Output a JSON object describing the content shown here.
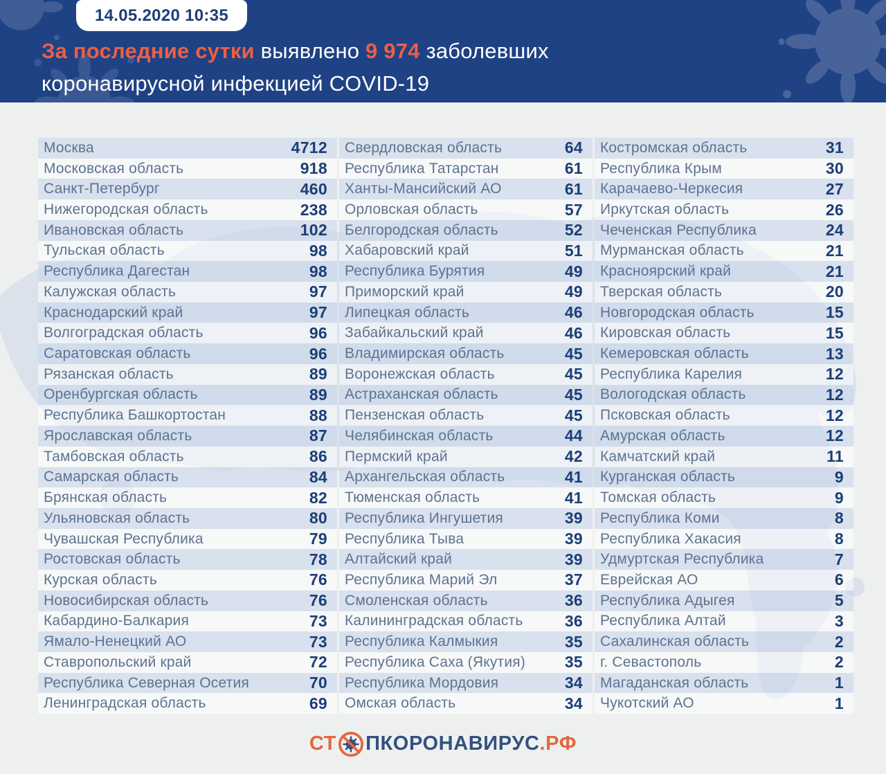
{
  "header": {
    "timestamp": "14.05.2020 10:35",
    "headline": {
      "highlight": "За последние сутки",
      "mid": " выявлено ",
      "count": "9 974",
      "tail": " заболевших",
      "line2": "коронавирусной инфекцией COVID-19"
    }
  },
  "chart_data": {
    "type": "table",
    "title": "За последние сутки выявлено 9 974 заболевших коронавирусной инфекцией COVID-19",
    "timestamp": "14.05.2020 10:35",
    "total_new_cases": "9 974",
    "layout": "3 columns, 28 zebra-striped rows each, values right-aligned",
    "rows": [
      [
        "Москва",
        4712
      ],
      [
        "Московская область",
        918
      ],
      [
        "Санкт-Петербург",
        460
      ],
      [
        "Нижегородская область",
        238
      ],
      [
        "Ивановская область",
        102
      ],
      [
        "Тульская область",
        98
      ],
      [
        "Республика Дагестан",
        98
      ],
      [
        "Калужская область",
        97
      ],
      [
        "Краснодарский край",
        97
      ],
      [
        "Волгоградская область",
        96
      ],
      [
        "Саратовская область",
        96
      ],
      [
        "Рязанская область",
        89
      ],
      [
        "Оренбургская область",
        89
      ],
      [
        "Республика Башкортостан",
        88
      ],
      [
        "Ярославская область",
        87
      ],
      [
        "Тамбовская область",
        86
      ],
      [
        "Самарская область",
        84
      ],
      [
        "Брянская область",
        82
      ],
      [
        "Ульяновская область",
        80
      ],
      [
        "Чувашская Республика",
        79
      ],
      [
        "Ростовская область",
        78
      ],
      [
        "Курская область",
        76
      ],
      [
        "Новосибирская область",
        76
      ],
      [
        "Кабардино-Балкария",
        73
      ],
      [
        "Ямало-Ненецкий АО",
        73
      ],
      [
        "Ставропольский край",
        72
      ],
      [
        "Республика Северная Осетия",
        70
      ],
      [
        "Ленинградская область",
        69
      ],
      [
        "Свердловская область",
        64
      ],
      [
        "Республика Татарстан",
        61
      ],
      [
        "Ханты-Мансийский АО",
        61
      ],
      [
        "Орловская область",
        57
      ],
      [
        "Белгородская область",
        52
      ],
      [
        "Хабаровский край",
        51
      ],
      [
        "Республика Бурятия",
        49
      ],
      [
        "Приморский край",
        49
      ],
      [
        "Липецкая область",
        46
      ],
      [
        "Забайкальский край",
        46
      ],
      [
        "Владимирская область",
        45
      ],
      [
        "Воронежская область",
        45
      ],
      [
        "Астраханская область",
        45
      ],
      [
        "Пензенская область",
        45
      ],
      [
        "Челябинская область",
        44
      ],
      [
        "Пермский край",
        42
      ],
      [
        "Архангельская область",
        41
      ],
      [
        "Тюменская область",
        41
      ],
      [
        "Республика Ингушетия",
        39
      ],
      [
        "Республика Тыва",
        39
      ],
      [
        "Алтайский край",
        39
      ],
      [
        "Республика Марий Эл",
        37
      ],
      [
        "Смоленская область",
        36
      ],
      [
        "Калининградская область",
        36
      ],
      [
        "Республика Калмыкия",
        35
      ],
      [
        "Республика Саха (Якутия)",
        35
      ],
      [
        "Республика Мордовия",
        34
      ],
      [
        "Омская область",
        34
      ],
      [
        "Костромская область",
        31
      ],
      [
        "Республика Крым",
        30
      ],
      [
        "Карачаево-Черкесия",
        27
      ],
      [
        "Иркутская область",
        26
      ],
      [
        "Чеченская Республика",
        24
      ],
      [
        "Мурманская область",
        21
      ],
      [
        "Красноярский край",
        21
      ],
      [
        "Тверская область",
        20
      ],
      [
        "Новгородская область",
        15
      ],
      [
        "Кировская область",
        15
      ],
      [
        "Кемеровская область",
        13
      ],
      [
        "Республика Карелия",
        12
      ],
      [
        "Вологодская область",
        12
      ],
      [
        "Псковская область",
        12
      ],
      [
        "Амурская область",
        12
      ],
      [
        "Камчатский край",
        11
      ],
      [
        "Курганская область",
        9
      ],
      [
        "Томская область",
        9
      ],
      [
        "Республика Коми",
        8
      ],
      [
        "Республика Хакасия",
        8
      ],
      [
        "Удмуртская Республика",
        7
      ],
      [
        "Еврейская АО",
        6
      ],
      [
        "Республика Адыгея",
        5
      ],
      [
        "Республика Алтай",
        3
      ],
      [
        "Сахалинская область",
        2
      ],
      [
        "г. Севастополь",
        2
      ],
      [
        "Магаданская область",
        1
      ],
      [
        "Чукотский АО",
        1
      ]
    ]
  },
  "footer": {
    "logo_prefix": "СТ",
    "logo_body": "ПКОРОНАВИРУС",
    "logo_domain": ".РФ"
  },
  "colors": {
    "header_navy": "#1f4284",
    "accent_orange": "#ec5f45",
    "value_navy": "#1c3e76",
    "region_text": "#5d7390",
    "row_stripe": "#dde5f1",
    "page_background": "#eef0f0",
    "map_watermark": "#d7deea",
    "logo_orange": "#e4673f",
    "logo_navy": "#33517f"
  }
}
